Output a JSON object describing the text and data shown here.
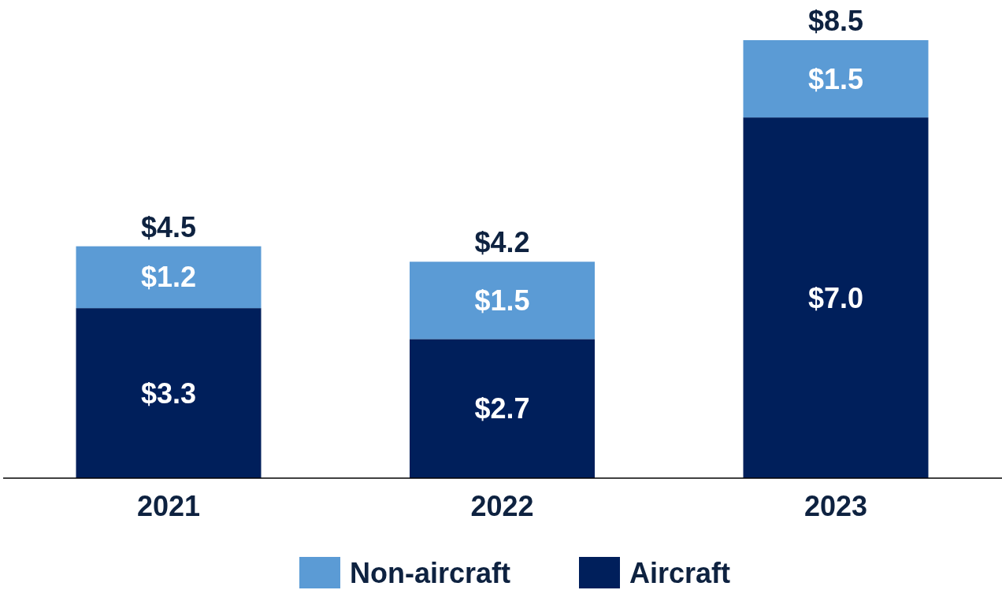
{
  "chart_data": {
    "type": "bar",
    "stacked": true,
    "categories": [
      "2021",
      "2022",
      "2023"
    ],
    "series": [
      {
        "name": "Aircraft",
        "color": "#001f5b",
        "values": [
          3.3,
          2.7,
          7.0
        ],
        "value_labels": [
          "$3.3",
          "$2.7",
          "$7.0"
        ]
      },
      {
        "name": "Non-aircraft",
        "color": "#5b9bd5",
        "values": [
          1.2,
          1.5,
          1.5
        ],
        "value_labels": [
          "$1.2",
          "$1.5",
          "$1.5"
        ]
      }
    ],
    "totals": [
      "$4.5",
      "$4.2",
      "$8.5"
    ],
    "legend": "bottom"
  }
}
